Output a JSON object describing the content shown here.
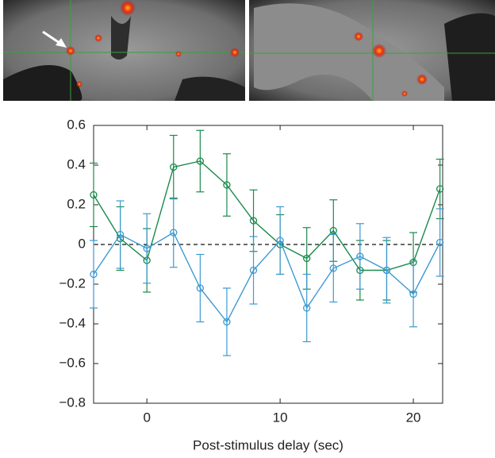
{
  "chart_data": {
    "type": "line",
    "x_label": "Post-stimulus delay (sec)",
    "x": [
      -4,
      -2,
      0,
      2,
      4,
      6,
      8,
      10,
      12,
      14,
      16,
      18,
      20,
      22
    ],
    "series": [
      {
        "color": "#1b8a4c",
        "values": [
          0.25,
          0.03,
          -0.08,
          0.39,
          0.42,
          0.3,
          0.12,
          0.0,
          -0.07,
          0.07,
          -0.13,
          -0.13,
          -0.09,
          0.28
        ],
        "errors": [
          0.16,
          0.16,
          0.16,
          0.16,
          0.155,
          0.157,
          0.155,
          0.15,
          0.155,
          0.155,
          0.15,
          0.15,
          0.15,
          0.15
        ]
      },
      {
        "color": "#3b9ad2",
        "values": [
          -0.15,
          0.05,
          -0.02,
          0.06,
          -0.22,
          -0.39,
          -0.13,
          0.02,
          -0.32,
          -0.12,
          -0.06,
          -0.13,
          -0.25,
          0.01
        ],
        "errors": [
          0.17,
          0.17,
          0.175,
          0.175,
          0.17,
          0.17,
          0.17,
          0.17,
          0.17,
          0.17,
          0.165,
          0.165,
          0.165,
          0.17
        ]
      }
    ],
    "xlim": [
      -4,
      22.2
    ],
    "xticks": [
      0,
      10,
      20
    ],
    "ylim": [
      -0.8,
      0.6
    ],
    "yticks": [
      {
        "value": -0.8,
        "label": "−0.8"
      },
      {
        "value": -0.6,
        "label": "−0.6"
      },
      {
        "value": -0.4,
        "label": "−0.4"
      },
      {
        "value": -0.2,
        "label": "−0.2"
      },
      0,
      0.2,
      0.4,
      0.6
    ],
    "zero_line": true
  }
}
